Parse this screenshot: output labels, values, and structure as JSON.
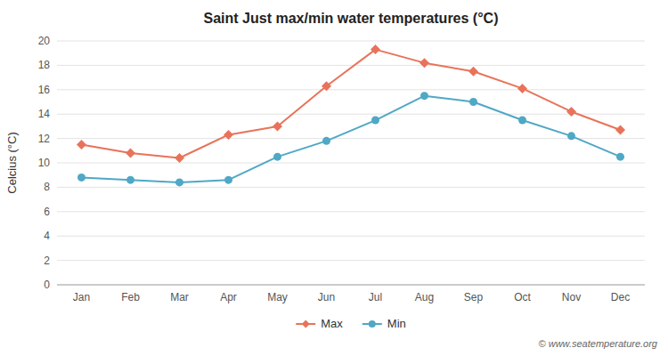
{
  "chart_data": {
    "type": "line",
    "title": "Saint Just max/min water temperatures (°C)",
    "y_label": "Celcius (°C)",
    "categories": [
      "Jan",
      "Feb",
      "Mar",
      "Apr",
      "May",
      "Jun",
      "Jul",
      "Aug",
      "Sep",
      "Oct",
      "Nov",
      "Dec"
    ],
    "series": [
      {
        "name": "Max",
        "color": "#e8735a",
        "marker": "diamond",
        "values": [
          11.5,
          10.8,
          10.4,
          12.3,
          13.0,
          16.3,
          19.3,
          18.2,
          17.5,
          16.1,
          14.2,
          12.7
        ]
      },
      {
        "name": "Min",
        "color": "#4fa8c5",
        "marker": "circle",
        "values": [
          8.8,
          8.6,
          8.4,
          8.6,
          10.5,
          11.8,
          13.5,
          15.5,
          15.0,
          13.5,
          12.2,
          10.5
        ]
      }
    ],
    "ylim": [
      0,
      20
    ],
    "yticks": [
      0,
      2,
      4,
      6,
      8,
      10,
      12,
      14,
      16,
      18,
      20
    ],
    "grid": true,
    "legend": "bottom",
    "annotations": [
      "© www.seatemperature.org"
    ]
  }
}
